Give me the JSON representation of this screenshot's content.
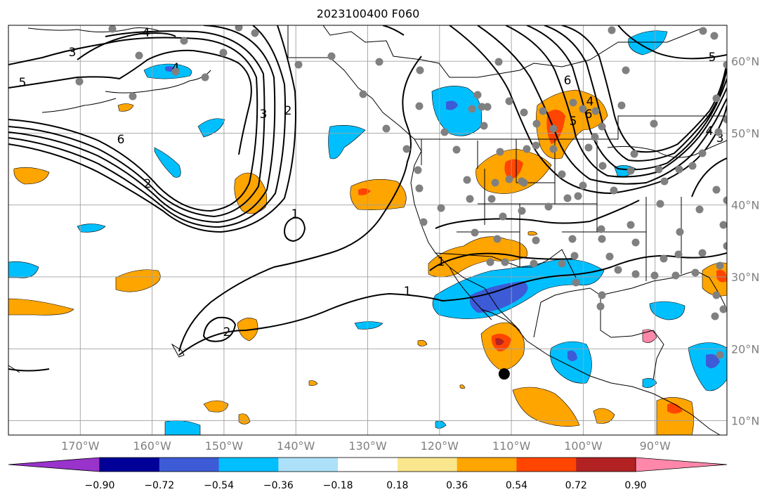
{
  "title": "2023100400 F060",
  "map": {
    "lat_labels": [
      {
        "text": "60°N",
        "lat": 60
      },
      {
        "text": "50°N",
        "lat": 50
      },
      {
        "text": "40°N",
        "lat": 40
      },
      {
        "text": "30°N",
        "lat": 30
      },
      {
        "text": "20°N",
        "lat": 20
      },
      {
        "text": "10°N",
        "lat": 10
      }
    ],
    "lon_labels": [
      {
        "text": "170°W",
        "lon": -170
      },
      {
        "text": "160°W",
        "lon": -160
      },
      {
        "text": "150°W",
        "lon": -150
      },
      {
        "text": "140°W",
        "lon": -140
      },
      {
        "text": "130°W",
        "lon": -130
      },
      {
        "text": "120°W",
        "lon": -120
      },
      {
        "text": "110°W",
        "lon": -110
      },
      {
        "text": "100°W",
        "lon": -100
      },
      {
        "text": "90°W",
        "lon": -90
      }
    ],
    "extent": {
      "lon_min": -180,
      "lon_max": -80,
      "lat_min": 8,
      "lat_max": 65
    },
    "contour_labels": [
      "3",
      "4",
      "5",
      "6",
      "1",
      "2",
      "1",
      "2",
      "1",
      "2",
      "3",
      "4",
      "6",
      "5",
      "4",
      "3",
      "6",
      "5",
      "4"
    ],
    "marker": {
      "lon": -111,
      "lat": 16.5,
      "label": "black-dot"
    }
  },
  "colorbar": {
    "ticks": [
      "−0.90",
      "−0.72",
      "−0.54",
      "−0.36",
      "−0.18",
      "0.18",
      "0.36",
      "0.54",
      "0.72",
      "0.90"
    ],
    "colors": [
      "#9933cc",
      "#000099",
      "#3d5bd6",
      "#00bfff",
      "#ade1fa",
      "#ffffff",
      "#fae68c",
      "#ffa500",
      "#ff4500",
      "#b22222",
      "#ff88aa"
    ]
  }
}
